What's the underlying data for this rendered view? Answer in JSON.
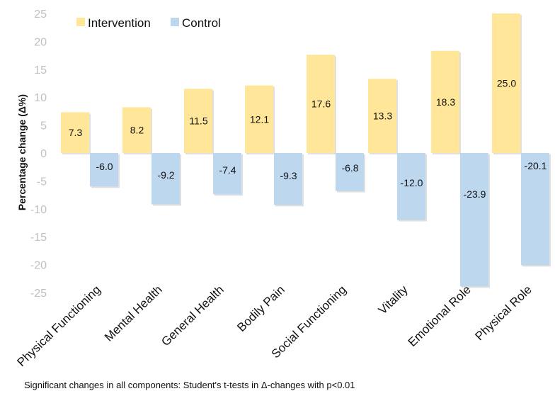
{
  "chart_data": {
    "type": "bar",
    "title": "",
    "xlabel": "",
    "ylabel": "Percentage change (Δ%)",
    "ylim": [
      -25,
      25
    ],
    "yticks": [
      25,
      20,
      15,
      10,
      5,
      0,
      -5,
      -10,
      -15,
      -20,
      -25
    ],
    "grid": false,
    "legend_position": "top-left",
    "categories": [
      "Physical Functioning",
      "Mental Health",
      "General Health",
      "Bodily Pain",
      "Social Functioning",
      "Vitality",
      "Emotional Role",
      "Physical Role"
    ],
    "series": [
      {
        "name": "Intervention",
        "color": "#FFE699",
        "values": [
          7.3,
          8.2,
          11.5,
          12.1,
          17.6,
          13.3,
          18.3,
          25.0
        ],
        "labels": [
          "7.3",
          "8.2",
          "11.5",
          "12.1",
          "17.6",
          "13.3",
          "18.3",
          "25.0"
        ]
      },
      {
        "name": "Control",
        "color": "#BDD7EE",
        "values": [
          -6.0,
          -9.2,
          -7.4,
          -9.3,
          -6.8,
          -12.0,
          -23.9,
          -20.1
        ],
        "labels": [
          "-6.0",
          "-9.2",
          "-7.4",
          "-9.3",
          "-6.8",
          "-12.0",
          "-23.9",
          "-20.1"
        ]
      }
    ],
    "footnote": "Significant changes in all components: Student's t-tests in Δ-changes with p<0.01"
  }
}
